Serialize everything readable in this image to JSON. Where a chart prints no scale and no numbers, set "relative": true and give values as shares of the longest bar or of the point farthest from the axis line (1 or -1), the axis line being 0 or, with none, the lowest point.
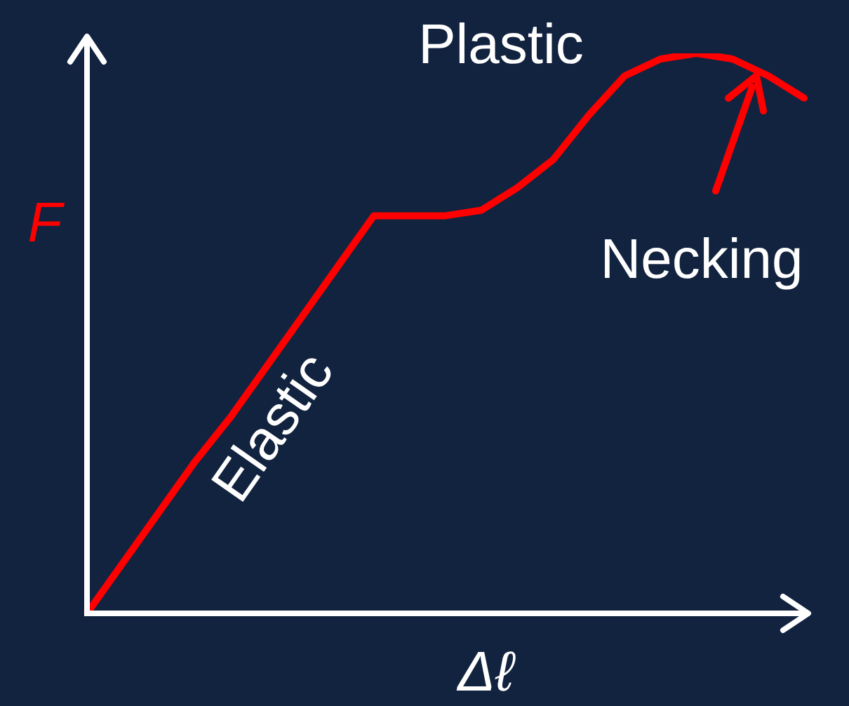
{
  "chart_data": {
    "type": "line",
    "relative": true,
    "xlabel": "Δℓ",
    "ylabel": "F",
    "categories": [
      null,
      null,
      null,
      null,
      null,
      null,
      null,
      null,
      null,
      null,
      null,
      null,
      null,
      null,
      null,
      null,
      null,
      null,
      null,
      null,
      null
    ],
    "series": [
      {
        "color": "#ff0000",
        "values": [
          0,
          0.09,
          0.18,
          0.27,
          0.35,
          0.44,
          0.53,
          0.62,
          0.71,
          0.71,
          0.71,
          0.72,
          0.76,
          0.81,
          0.89,
          0.96,
          0.99,
          1,
          0.99,
          0.96,
          0.92
        ]
      }
    ],
    "annotations": [
      "Plastic",
      "Elastic",
      "Necking"
    ],
    "grid": false,
    "legend": false,
    "marker": "none",
    "line_style": "solid"
  }
}
